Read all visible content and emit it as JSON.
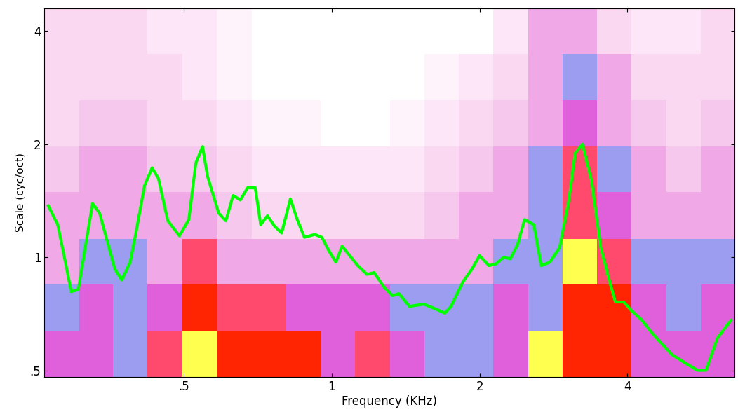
{
  "chart_data": {
    "type": "heatmap",
    "x_label": "Frequency (KHz)",
    "y_label": "Scale (cyc/oct)",
    "log": true,
    "xlim": [
      0.26,
      6.6
    ],
    "ylim": [
      0.48,
      4.6
    ],
    "xticks": [
      {
        "value": 0.5,
        "label": ".5"
      },
      1,
      2,
      4
    ],
    "yticks": [
      {
        "value": 0.5,
        "label": ".5"
      },
      1,
      2,
      4
    ],
    "x_edges": [
      0.26,
      0.306,
      0.359,
      0.422,
      0.497,
      0.584,
      0.687,
      0.808,
      0.95,
      1.117,
      1.313,
      1.544,
      1.815,
      2.134,
      2.51,
      2.951,
      3.47,
      4.08,
      4.8,
      5.64,
      6.6
    ],
    "y_edges": [
      0.48,
      0.637,
      0.845,
      1.12,
      1.49,
      1.97,
      2.62,
      3.47,
      4.6
    ],
    "color_range": [
      0,
      1
    ],
    "cells": [
      [
        0.6,
        0.6,
        0.45,
        0.75,
        1.0,
        0.88,
        0.88,
        0.88,
        0.6,
        0.75,
        0.6,
        0.45,
        0.45,
        0.6,
        1.0,
        0.88,
        0.88,
        0.6,
        0.6,
        0.6
      ],
      [
        0.45,
        0.6,
        0.45,
        0.6,
        0.88,
        0.75,
        0.75,
        0.6,
        0.6,
        0.6,
        0.45,
        0.45,
        0.45,
        0.6,
        0.45,
        0.88,
        0.88,
        0.6,
        0.45,
        0.6
      ],
      [
        0.3,
        0.45,
        0.45,
        0.3,
        0.75,
        0.3,
        0.3,
        0.3,
        0.3,
        0.3,
        0.3,
        0.3,
        0.3,
        0.45,
        0.45,
        1.0,
        0.75,
        0.45,
        0.45,
        0.45
      ],
      [
        0.3,
        0.3,
        0.3,
        0.3,
        0.3,
        0.2,
        0.15,
        0.15,
        0.15,
        0.15,
        0.15,
        0.2,
        0.3,
        0.3,
        0.45,
        0.75,
        0.6,
        0.3,
        0.3,
        0.3
      ],
      [
        0.2,
        0.3,
        0.3,
        0.2,
        0.2,
        0.15,
        0.1,
        0.1,
        0.1,
        0.1,
        0.1,
        0.15,
        0.2,
        0.3,
        0.45,
        0.75,
        0.45,
        0.3,
        0.2,
        0.3
      ],
      [
        0.15,
        0.2,
        0.2,
        0.15,
        0.15,
        0.1,
        0.05,
        0.05,
        0,
        0,
        0.05,
        0.1,
        0.15,
        0.2,
        0.3,
        0.6,
        0.3,
        0.2,
        0.15,
        0.2
      ],
      [
        0.15,
        0.15,
        0.15,
        0.15,
        0.1,
        0.05,
        0,
        0,
        0,
        0,
        0,
        0.05,
        0.1,
        0.15,
        0.3,
        0.45,
        0.3,
        0.15,
        0.15,
        0.15
      ],
      [
        0.15,
        0.15,
        0.15,
        0.1,
        0.1,
        0.05,
        0,
        0,
        0,
        0,
        0,
        0,
        0,
        0.1,
        0.3,
        0.3,
        0.15,
        0.1,
        0.1,
        0.15
      ]
    ],
    "series": [
      {
        "type": "line",
        "color": "#00ff00",
        "x": [
          0.265,
          0.277,
          0.288,
          0.295,
          0.305,
          0.326,
          0.337,
          0.362,
          0.374,
          0.389,
          0.4,
          0.416,
          0.431,
          0.444,
          0.464,
          0.49,
          0.512,
          0.529,
          0.546,
          0.559,
          0.589,
          0.609,
          0.63,
          0.652,
          0.674,
          0.699,
          0.717,
          0.74,
          0.765,
          0.791,
          0.824,
          0.851,
          0.88,
          0.924,
          0.955,
          0.987,
          1.02,
          1.05,
          1.13,
          1.18,
          1.22,
          1.28,
          1.33,
          1.37,
          1.44,
          1.54,
          1.62,
          1.7,
          1.75,
          1.85,
          1.93,
          2.0,
          2.09,
          2.16,
          2.24,
          2.31,
          2.39,
          2.47,
          2.58,
          2.67,
          2.78,
          2.91,
          3.04,
          3.13,
          3.24,
          3.38,
          3.53,
          3.68,
          3.78,
          3.93,
          4.08,
          4.28,
          4.48,
          4.69,
          4.93,
          5.28,
          5.55,
          5.78,
          6.1,
          6.5
        ],
        "values": [
          1.37,
          1.22,
          0.95,
          0.81,
          0.82,
          1.39,
          1.31,
          0.93,
          0.87,
          0.97,
          1.17,
          1.55,
          1.73,
          1.62,
          1.25,
          1.14,
          1.26,
          1.78,
          1.97,
          1.64,
          1.31,
          1.25,
          1.46,
          1.42,
          1.53,
          1.53,
          1.22,
          1.29,
          1.21,
          1.16,
          1.43,
          1.26,
          1.13,
          1.15,
          1.13,
          1.04,
          0.97,
          1.07,
          0.95,
          0.9,
          0.91,
          0.83,
          0.79,
          0.8,
          0.74,
          0.75,
          0.73,
          0.71,
          0.74,
          0.86,
          0.93,
          1.01,
          0.95,
          0.96,
          1.0,
          0.99,
          1.08,
          1.26,
          1.22,
          0.95,
          0.97,
          1.06,
          1.42,
          1.89,
          2.0,
          1.6,
          1.06,
          0.86,
          0.76,
          0.76,
          0.72,
          0.68,
          0.63,
          0.59,
          0.55,
          0.52,
          0.5,
          0.5,
          0.61,
          0.68
        ]
      }
    ]
  }
}
